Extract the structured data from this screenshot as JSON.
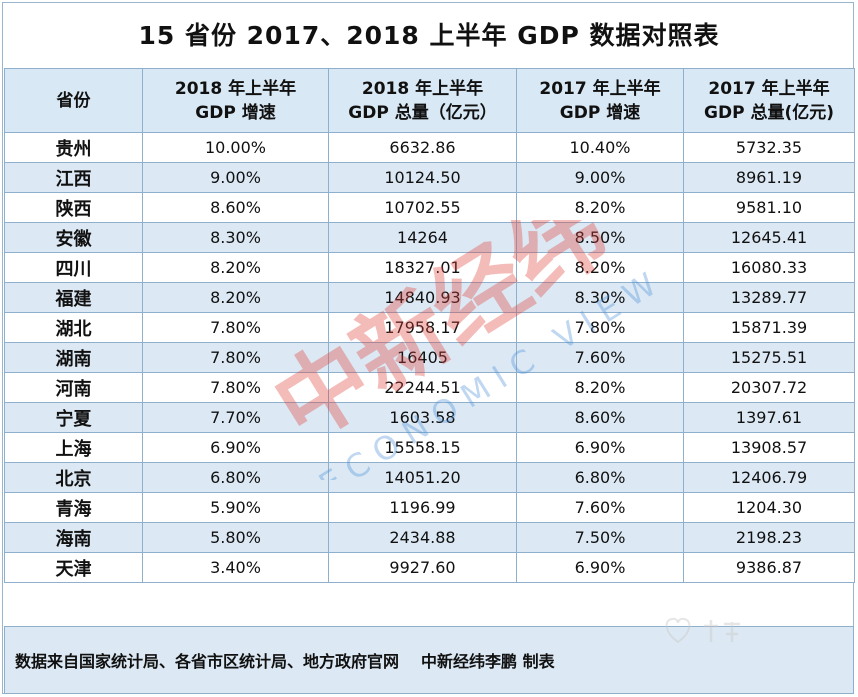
{
  "title": "15 省份 2017、2018 上半年 GDP 数据对照表",
  "headers": {
    "province": "省份",
    "growth_2018_line1": "2018 年上半年",
    "growth_2018_line2": "GDP 增速",
    "total_2018_line1": "2018 年上半年",
    "total_2018_line2": "GDP 总量（亿元）",
    "growth_2017_line1": "2017 年上半年",
    "growth_2017_line2": "GDP 增速",
    "total_2017_line1": "2017 年上半年",
    "total_2017_line2": "GDP 总量(亿元)"
  },
  "rows": [
    {
      "province": "贵州",
      "g2018": "10.00%",
      "t2018": "6632.86",
      "g2017": "10.40%",
      "t2017": "5732.35"
    },
    {
      "province": "江西",
      "g2018": "9.00%",
      "t2018": "10124.50",
      "g2017": "9.00%",
      "t2017": "8961.19"
    },
    {
      "province": "陕西",
      "g2018": "8.60%",
      "t2018": "10702.55",
      "g2017": "8.20%",
      "t2017": "9581.10"
    },
    {
      "province": "安徽",
      "g2018": "8.30%",
      "t2018": "14264",
      "g2017": "8.50%",
      "t2017": "12645.41"
    },
    {
      "province": "四川",
      "g2018": "8.20%",
      "t2018": "18327.01",
      "g2017": "8.20%",
      "t2017": "16080.33"
    },
    {
      "province": "福建",
      "g2018": "8.20%",
      "t2018": "14840.93",
      "g2017": "8.30%",
      "t2017": "13289.77"
    },
    {
      "province": "湖北",
      "g2018": "7.80%",
      "t2018": "17958.17",
      "g2017": "7.80%",
      "t2017": "15871.39"
    },
    {
      "province": "湖南",
      "g2018": "7.80%",
      "t2018": "16405",
      "g2017": "7.60%",
      "t2017": "15275.51"
    },
    {
      "province": "河南",
      "g2018": "7.80%",
      "t2018": "22244.51",
      "g2017": "8.20%",
      "t2017": "20307.72"
    },
    {
      "province": "宁夏",
      "g2018": "7.70%",
      "t2018": "1603.58",
      "g2017": "8.60%",
      "t2017": "1397.61"
    },
    {
      "province": "上海",
      "g2018": "6.90%",
      "t2018": "15558.15",
      "g2017": "6.90%",
      "t2017": "13908.57"
    },
    {
      "province": "北京",
      "g2018": "6.80%",
      "t2018": "14051.20",
      "g2017": "6.80%",
      "t2017": "12406.79"
    },
    {
      "province": "青海",
      "g2018": "5.90%",
      "t2018": "1196.99",
      "g2017": "7.60%",
      "t2017": "1204.30"
    },
    {
      "province": "海南",
      "g2018": "5.80%",
      "t2018": "2434.88",
      "g2017": "7.50%",
      "t2017": "2198.23"
    },
    {
      "province": "天津",
      "g2018": "3.40%",
      "t2018": "9927.60",
      "g2017": "6.90%",
      "t2017": "9386.87"
    }
  ],
  "footer": {
    "source": "数据来自国家统计局、各省市区统计局、地方政府官网",
    "credit": "中新经纬李鹏 制表"
  },
  "watermark": {
    "brand": "中新经纬",
    "tagline": "ECONOMIC VIEW",
    "color": "#e0413a",
    "tagline_color": "#4a8fd6"
  }
}
